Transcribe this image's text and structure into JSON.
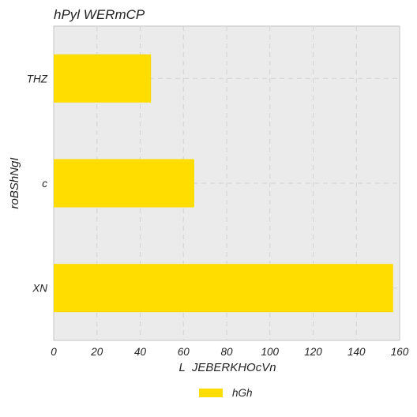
{
  "chart_data": {
    "type": "bar",
    "orientation": "horizontal",
    "title": "hPyl WERmCP",
    "xlabel": "L  JEBERKHOcVn",
    "ylabel": "roBShNgI",
    "categories": [
      "XN",
      "c",
      "THZ"
    ],
    "series": [
      {
        "name": "hGh",
        "values": [
          157,
          65,
          45
        ]
      }
    ],
    "xlim": [
      0,
      160
    ],
    "xticks": [
      0,
      20,
      40,
      60,
      80,
      100,
      120,
      140,
      160
    ],
    "grid": true,
    "legend_position": "bottom-center",
    "colors": {
      "bar": "#ffdd00",
      "plot_background": "#ebebeb",
      "grid": "#d6d6d6",
      "frame": "#c4c4c4"
    }
  }
}
